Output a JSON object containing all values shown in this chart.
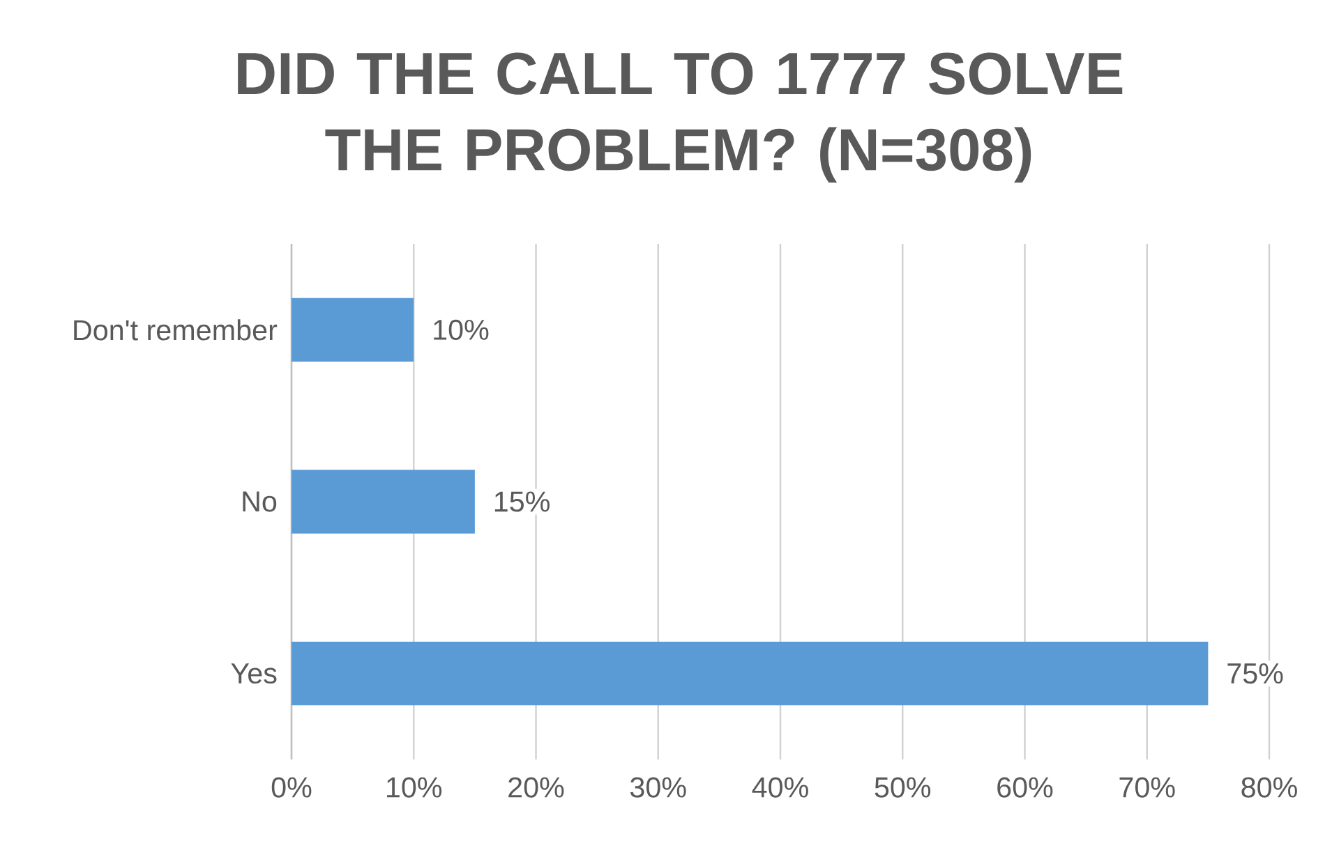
{
  "chart_data": {
    "type": "bar",
    "orientation": "horizontal",
    "title": "DID THE CALL TO 1777 SOLVE THE PROBLEM? (N=308)",
    "categories": [
      "Don't remember",
      "No",
      "Yes"
    ],
    "values": [
      10,
      15,
      75
    ],
    "value_labels": [
      "10%",
      "15%",
      "75%"
    ],
    "color": "#5b9bd5",
    "xlim": [
      0,
      80
    ],
    "xticks": [
      {
        "value": 0,
        "label": "0%"
      },
      {
        "value": 10,
        "label": "10%"
      },
      {
        "value": 20,
        "label": "20%"
      },
      {
        "value": 30,
        "label": "30%"
      },
      {
        "value": 40,
        "label": "40%"
      },
      {
        "value": 50,
        "label": "50%"
      },
      {
        "value": 60,
        "label": "60%"
      },
      {
        "value": 70,
        "label": "70%"
      },
      {
        "value": 80,
        "label": "80%"
      }
    ],
    "grid": "x"
  }
}
